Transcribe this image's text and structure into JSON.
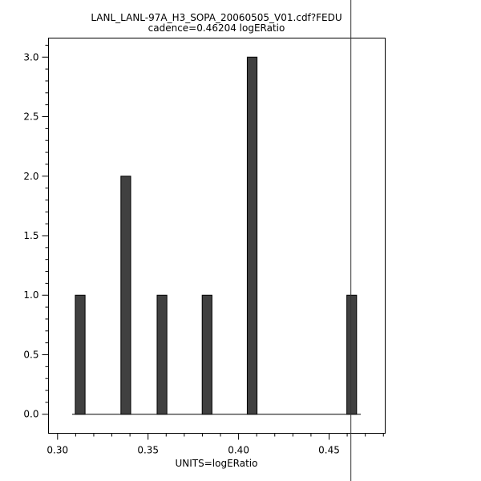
{
  "chart_data": {
    "type": "bar",
    "title": "LANL_LANL-97A_H3_SOPA_20060505_V01.cdf?FEDU",
    "subtitle": "cadence=0.46204 logERatio",
    "xlabel": "UNITS=logERatio",
    "ylabel": "",
    "xlim": [
      0.295,
      0.481
    ],
    "ylim": [
      -0.16,
      3.16
    ],
    "x_ticks": [
      "0.30",
      "0.35",
      "0.40",
      "0.45"
    ],
    "y_ticks": [
      "0.0",
      "0.5",
      "1.0",
      "1.5",
      "2.0",
      "2.5",
      "3.0"
    ],
    "bar_width": 0.0054,
    "x": [
      0.3125,
      0.3377,
      0.3577,
      0.3826,
      0.4075,
      0.4625
    ],
    "values": [
      1,
      2,
      1,
      1,
      3,
      1
    ],
    "cadence_marker": 0.46204,
    "bar_color": "#404040",
    "grid": false
  }
}
